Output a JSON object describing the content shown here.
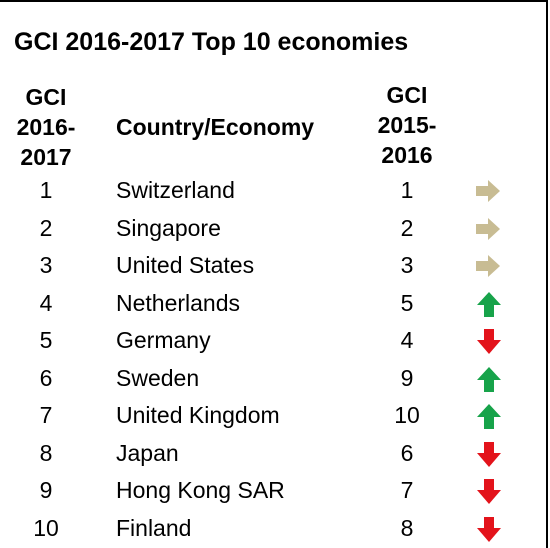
{
  "title": "GCI 2016-2017 Top 10 economies",
  "headers": {
    "rank_new": [
      "GCI",
      "2016-",
      "2017"
    ],
    "country": "Country/Economy",
    "rank_old": [
      "GCI",
      "2015-",
      "2016"
    ]
  },
  "colors": {
    "same": "#c8bc93",
    "up": "#17a34a",
    "down": "#e3131b"
  },
  "rows": [
    {
      "rank_new": "1",
      "country": "Switzerland",
      "rank_old": "1",
      "trend": "same"
    },
    {
      "rank_new": "2",
      "country": "Singapore",
      "rank_old": "2",
      "trend": "same"
    },
    {
      "rank_new": "3",
      "country": "United States",
      "rank_old": "3",
      "trend": "same"
    },
    {
      "rank_new": "4",
      "country": "Netherlands",
      "rank_old": "5",
      "trend": "up"
    },
    {
      "rank_new": "5",
      "country": "Germany",
      "rank_old": "4",
      "trend": "down"
    },
    {
      "rank_new": "6",
      "country": "Sweden",
      "rank_old": "9",
      "trend": "up"
    },
    {
      "rank_new": "7",
      "country": "United Kingdom",
      "rank_old": "10",
      "trend": "up"
    },
    {
      "rank_new": "8",
      "country": "Japan",
      "rank_old": "6",
      "trend": "down"
    },
    {
      "rank_new": "9",
      "country": "Hong Kong SAR",
      "rank_old": "7",
      "trend": "down"
    },
    {
      "rank_new": "10",
      "country": "Finland",
      "rank_old": "8",
      "trend": "down"
    }
  ]
}
